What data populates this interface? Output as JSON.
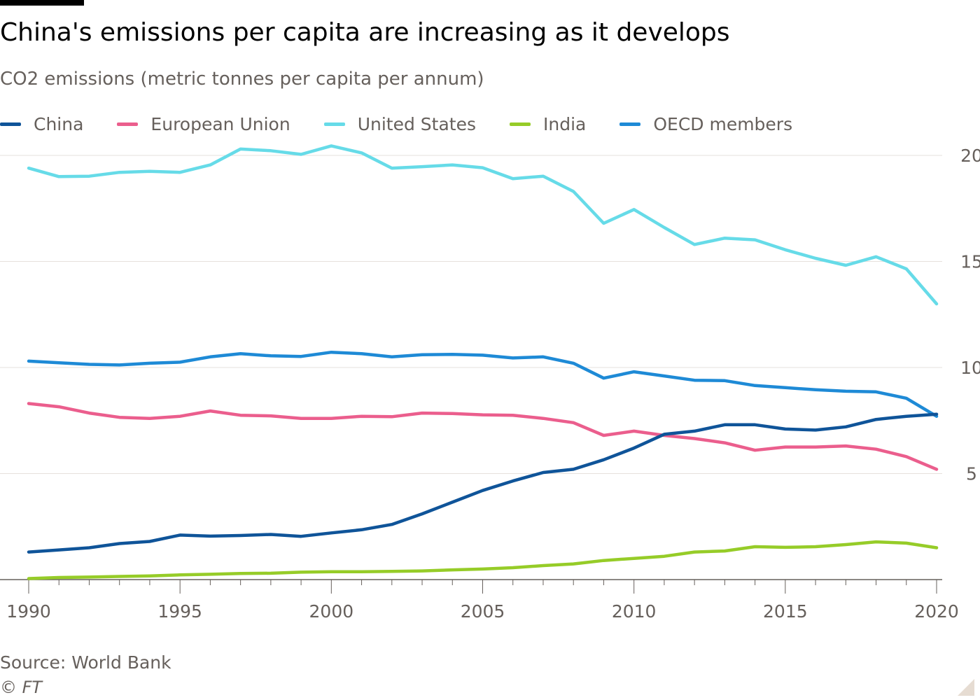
{
  "header": {
    "title": "China's emissions per capita are increasing as it develops",
    "subtitle": "CO2 emissions (metric tonnes per capita per annum)"
  },
  "footer": {
    "source": "Source: World Bank",
    "credit": "© FT"
  },
  "chart_data": {
    "type": "line",
    "title": "China's emissions per capita are increasing as it develops",
    "subtitle": "CO2 emissions (metric tonnes per capita per annum)",
    "xlabel": "",
    "ylabel": "",
    "xlim": [
      1990,
      2020
    ],
    "ylim": [
      0,
      20
    ],
    "x_ticks": [
      1990,
      1995,
      2000,
      2005,
      2010,
      2015,
      2020
    ],
    "y_ticks": [
      5,
      10,
      15,
      20
    ],
    "y_axis_side": "right",
    "grid": true,
    "legend_position": "top-left",
    "x": [
      1990,
      1991,
      1992,
      1993,
      1994,
      1995,
      1996,
      1997,
      1998,
      1999,
      2000,
      2001,
      2002,
      2003,
      2004,
      2005,
      2006,
      2007,
      2008,
      2009,
      2010,
      2011,
      2012,
      2013,
      2014,
      2015,
      2016,
      2017,
      2018,
      2019,
      2020
    ],
    "series": [
      {
        "name": "China",
        "color": "#0f5499",
        "values": [
          1.3,
          1.4,
          1.5,
          1.7,
          1.8,
          2.1,
          2.05,
          2.08,
          2.13,
          2.04,
          2.2,
          2.35,
          2.6,
          3.1,
          3.65,
          4.2,
          4.65,
          5.05,
          5.2,
          5.65,
          6.2,
          6.85,
          7.0,
          7.3,
          7.3,
          7.1,
          7.05,
          7.2,
          7.55,
          7.7,
          7.8
        ]
      },
      {
        "name": "European Union",
        "color": "#eb5e8d",
        "values": [
          8.3,
          8.15,
          7.85,
          7.65,
          7.6,
          7.7,
          7.95,
          7.75,
          7.72,
          7.6,
          7.6,
          7.7,
          7.68,
          7.85,
          7.83,
          7.77,
          7.75,
          7.6,
          7.4,
          6.8,
          7.0,
          6.8,
          6.65,
          6.45,
          6.1,
          6.25,
          6.25,
          6.3,
          6.15,
          5.8,
          5.2
        ]
      },
      {
        "name": "United States",
        "color": "#66dbe8",
        "values": [
          19.4,
          19.0,
          19.02,
          19.2,
          19.25,
          19.2,
          19.55,
          20.3,
          20.22,
          20.05,
          20.45,
          20.12,
          19.4,
          19.47,
          19.55,
          19.42,
          18.9,
          19.02,
          18.3,
          16.8,
          17.45,
          16.6,
          15.8,
          16.1,
          16.02,
          15.55,
          15.15,
          14.82,
          15.22,
          14.65,
          13.0
        ]
      },
      {
        "name": "India",
        "color": "#96cc28",
        "values": [
          0.05,
          0.1,
          0.12,
          0.15,
          0.17,
          0.22,
          0.25,
          0.29,
          0.3,
          0.35,
          0.37,
          0.37,
          0.39,
          0.41,
          0.46,
          0.5,
          0.56,
          0.66,
          0.74,
          0.9,
          1.0,
          1.1,
          1.3,
          1.35,
          1.55,
          1.52,
          1.55,
          1.65,
          1.78,
          1.72,
          1.5
        ]
      },
      {
        "name": "OECD members",
        "color": "#1e8ad6",
        "values": [
          10.3,
          10.22,
          10.15,
          10.12,
          10.2,
          10.25,
          10.5,
          10.65,
          10.55,
          10.52,
          10.72,
          10.65,
          10.5,
          10.6,
          10.62,
          10.58,
          10.45,
          10.5,
          10.2,
          9.5,
          9.8,
          9.6,
          9.4,
          9.38,
          9.15,
          9.05,
          8.95,
          8.88,
          8.85,
          8.55,
          7.7
        ]
      }
    ]
  }
}
